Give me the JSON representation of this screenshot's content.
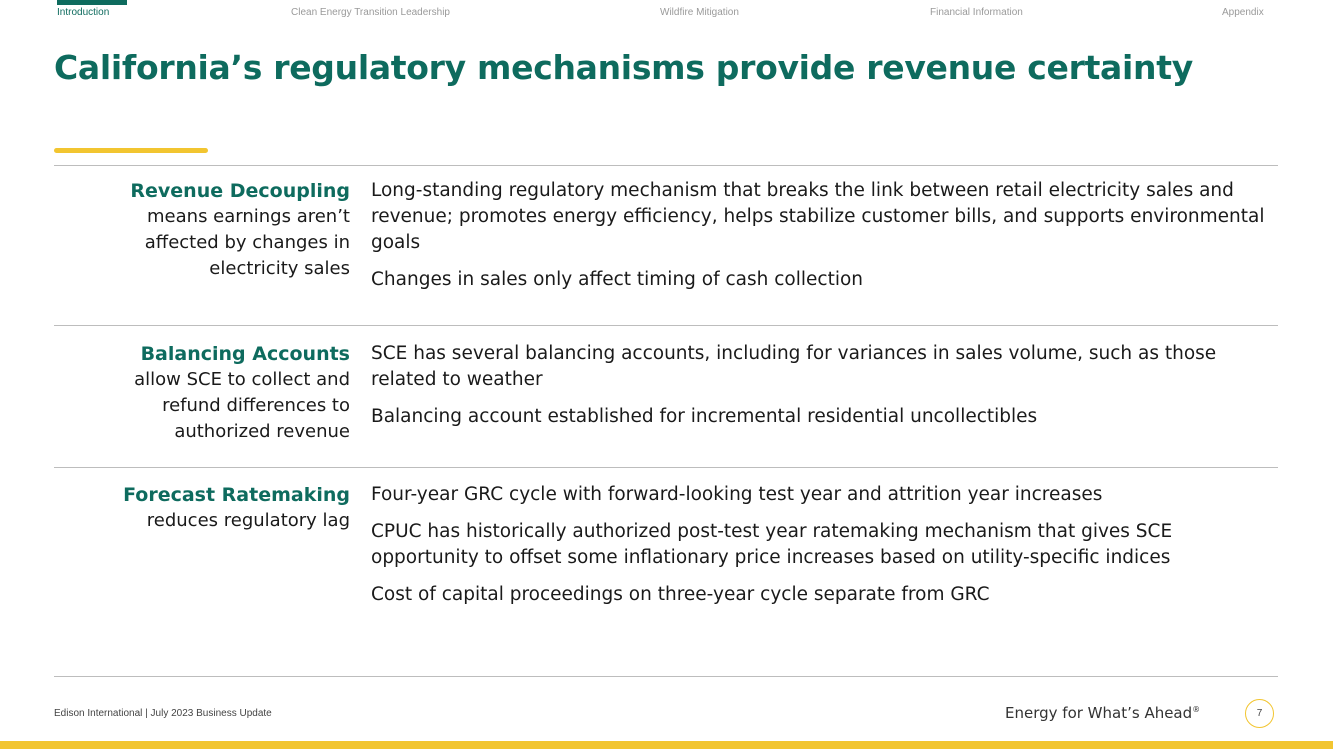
{
  "nav": {
    "tabs": [
      {
        "label": "Introduction",
        "active": true
      },
      {
        "label": "Clean Energy Transition Leadership",
        "active": false
      },
      {
        "label": "Wildfire Mitigation",
        "active": false
      },
      {
        "label": "Financial Information",
        "active": false
      },
      {
        "label": "Appendix",
        "active": false
      }
    ]
  },
  "slide": {
    "title": "California’s regulatory mechanisms provide revenue certainty",
    "rows": [
      {
        "head": "Revenue Decoupling",
        "sub": [
          "means earnings aren’t",
          "affected by changes in",
          "electricity sales"
        ],
        "bullets": [
          "Long-standing regulatory mechanism that breaks the link between retail electricity sales and revenue; promotes energy efficiency, helps stabilize customer bills, and supports environmental goals",
          "Changes in sales only affect timing of cash collection"
        ]
      },
      {
        "head": "Balancing Accounts",
        "sub": [
          "allow SCE to collect and",
          "refund differences to",
          "authorized revenue"
        ],
        "bullets": [
          "SCE has several balancing accounts, including for variances in sales volume, such as those related to weather",
          "Balancing account established for incremental residential uncollectibles"
        ]
      },
      {
        "head": "Forecast Ratemaking",
        "sub": [
          "reduces regulatory lag"
        ],
        "bullets": [
          "Four-year GRC cycle with forward-looking test year and attrition year increases",
          "CPUC has historically authorized post-test year ratemaking mechanism that gives SCE opportunity to offset some inflationary price increases based on utility-specific indices",
          "Cost of capital proceedings on three-year cycle separate from GRC"
        ]
      }
    ]
  },
  "footer": {
    "left": "Edison International | July 2023 Business Update",
    "tagline": "Energy for What’s Ahead",
    "tagline_mark": "®",
    "page": "7"
  },
  "colors": {
    "brand_green": "#0e6b5e",
    "accent_yellow": "#f2c530"
  }
}
